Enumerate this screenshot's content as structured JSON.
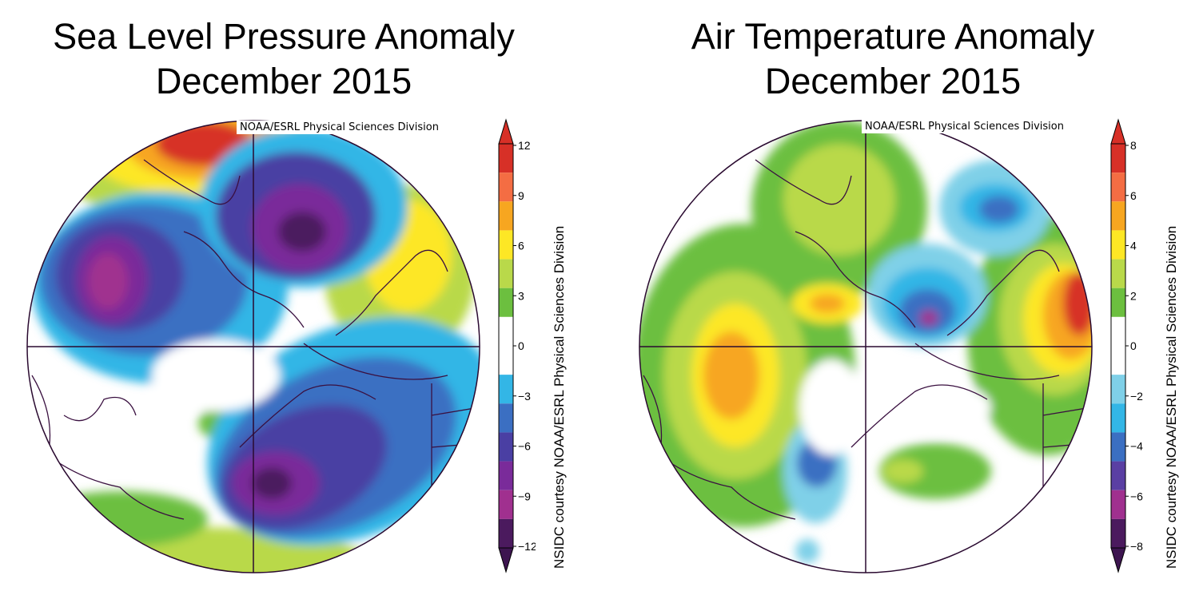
{
  "panels": [
    {
      "title_line1": "Sea Level Pressure Anomaly",
      "title_line2": "December 2015",
      "credit": "NOAA/ESRL Physical Sciences Division",
      "side_label": "NSIDC courtesy NOAA/ESRL Physical Sciences Division",
      "colorbar": {
        "ticks": [
          "12",
          "9",
          "6",
          "3",
          "0",
          "−3",
          "−6",
          "−9",
          "−12"
        ],
        "colors_top_to_bottom": [
          "#d73027",
          "#f46d43",
          "#f7a620",
          "#fde725",
          "#b9d94a",
          "#6cbf3f",
          "#ffffff",
          "#ffffff",
          "#33b6e6",
          "#3b6fc2",
          "#4a3fa3",
          "#7a2b9a",
          "#a0308f",
          "#4b1a5e"
        ],
        "arrow_top": "#d73027",
        "arrow_bottom": "#3d1550"
      }
    },
    {
      "title_line1": "Air Temperature Anomaly",
      "title_line2": "December 2015",
      "credit": "NOAA/ESRL Physical Sciences Division",
      "side_label": "NSIDC courtesy NOAA/ESRL Physical Sciences Division",
      "colorbar": {
        "ticks": [
          "8",
          "6",
          "4",
          "2",
          "0",
          "−2",
          "−4",
          "−6",
          "−8"
        ],
        "colors_top_to_bottom": [
          "#d73027",
          "#f46d43",
          "#f7a620",
          "#fde725",
          "#b9d94a",
          "#6cbf3f",
          "#ffffff",
          "#ffffff",
          "#7fd0e8",
          "#33b6e6",
          "#3b6fc2",
          "#5a3fa3",
          "#a0308f",
          "#4b1a5e"
        ],
        "arrow_top": "#d73027",
        "arrow_bottom": "#3d1550"
      }
    }
  ]
}
